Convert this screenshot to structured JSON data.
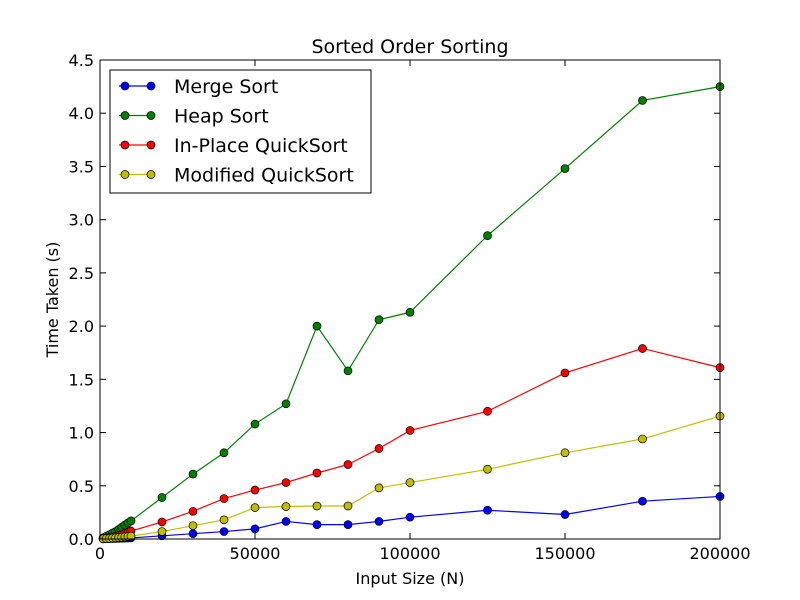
{
  "chart_data": {
    "type": "line",
    "title": "Sorted Order Sorting",
    "xlabel": "Input Size (N)",
    "ylabel": "Time Taken (s)",
    "xlim": [
      0,
      200000
    ],
    "ylim": [
      0,
      4.5
    ],
    "xticks": [
      0,
      50000,
      100000,
      150000,
      200000
    ],
    "xtick_labels": [
      "0",
      "50000",
      "100000",
      "150000",
      "200000"
    ],
    "yticks": [
      0,
      0.5,
      1.0,
      1.5,
      2.0,
      2.5,
      3.0,
      3.5,
      4.0,
      4.5
    ],
    "ytick_labels": [
      "0.0",
      "0.5",
      "1.0",
      "1.5",
      "2.0",
      "2.5",
      "3.0",
      "3.5",
      "4.0",
      "4.5"
    ],
    "grid": false,
    "legend_position": "top-left",
    "x": [
      1000,
      2000,
      3000,
      4000,
      5000,
      6000,
      7000,
      8000,
      9000,
      10000,
      20000,
      30000,
      40000,
      50000,
      60000,
      70000,
      80000,
      90000,
      100000,
      125000,
      150000,
      175000,
      200000
    ],
    "series": [
      {
        "name": "Merge Sort",
        "color": "#0000ff",
        "values": [
          0.001,
          0.002,
          0.003,
          0.004,
          0.005,
          0.006,
          0.007,
          0.008,
          0.009,
          0.01,
          0.03,
          0.05,
          0.07,
          0.095,
          0.165,
          0.135,
          0.135,
          0.165,
          0.205,
          0.27,
          0.23,
          0.355,
          0.4
        ]
      },
      {
        "name": "Heap Sort",
        "color": "#008000",
        "values": [
          0.012,
          0.025,
          0.04,
          0.055,
          0.07,
          0.09,
          0.11,
          0.13,
          0.15,
          0.17,
          0.39,
          0.61,
          0.81,
          1.08,
          1.27,
          2.0,
          1.58,
          2.06,
          2.13,
          2.85,
          3.48,
          4.12,
          4.25
        ]
      },
      {
        "name": "In-Place QuickSort",
        "color": "#ff0000",
        "values": [
          0.004,
          0.008,
          0.013,
          0.018,
          0.025,
          0.033,
          0.041,
          0.05,
          0.06,
          0.075,
          0.16,
          0.26,
          0.38,
          0.46,
          0.53,
          0.62,
          0.7,
          0.85,
          1.02,
          1.2,
          1.56,
          1.79,
          1.61
        ]
      },
      {
        "name": "Modified QuickSort",
        "color": "#bfbf00",
        "values": [
          0.002,
          0.004,
          0.006,
          0.009,
          0.011,
          0.014,
          0.017,
          0.02,
          0.023,
          0.027,
          0.07,
          0.125,
          0.18,
          0.295,
          0.305,
          0.31,
          0.31,
          0.48,
          0.53,
          0.655,
          0.81,
          0.94,
          1.155
        ]
      }
    ]
  }
}
